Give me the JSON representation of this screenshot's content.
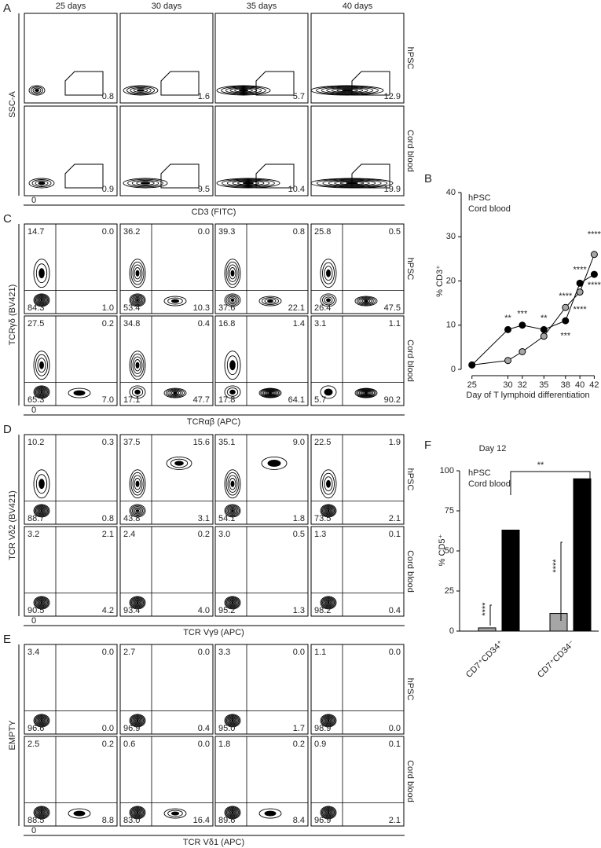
{
  "days": [
    "25 days",
    "30 days",
    "35 days",
    "40 days"
  ],
  "conditions": [
    "hPSC",
    "Cord blood"
  ],
  "panel_a": {
    "label": "A",
    "y_label": "SSC-A",
    "x_label": "CD3 (FITC)",
    "axis_zero": "0",
    "gates": [
      [
        "0.8",
        "1.6",
        "5.7",
        "12.9"
      ],
      [
        "0.9",
        "9.5",
        "10.4",
        "19.9"
      ]
    ]
  },
  "panel_c": {
    "label": "C",
    "y_label": "TCRγδ (BV421)",
    "x_label": "TCRαβ (APC)",
    "axis_zero": "0",
    "quadrants": [
      [
        [
          "14.7",
          "0.0",
          "84.3",
          "1.0"
        ],
        [
          "36.2",
          "0.0",
          "53.4",
          "10.3"
        ],
        [
          "39.3",
          "0.8",
          "37.6",
          "22.1"
        ],
        [
          "25.8",
          "0.5",
          "26.4",
          "47.5"
        ]
      ],
      [
        [
          "27.5",
          "0.2",
          "65.3",
          "7.0"
        ],
        [
          "34.8",
          "0.4",
          "17.1",
          "47.7"
        ],
        [
          "16.8",
          "1.4",
          "17.8",
          "64.1"
        ],
        [
          "3.1",
          "1.1",
          "5.7",
          "90.2"
        ]
      ]
    ]
  },
  "panel_d": {
    "label": "D",
    "y_label": "TCR Vδ2 (BV421)",
    "x_label": "TCR Vγ9 (APC)",
    "axis_zero": "0",
    "quadrants": [
      [
        [
          "10.2",
          "0.3",
          "88.7",
          "0.8"
        ],
        [
          "37.5",
          "15.6",
          "43.8",
          "3.1"
        ],
        [
          "35.1",
          "9.0",
          "54.1",
          "1.8"
        ],
        [
          "22.5",
          "1.9",
          "73.5",
          "2.1"
        ]
      ],
      [
        [
          "3.2",
          "2.1",
          "90.5",
          "4.2"
        ],
        [
          "2.4",
          "0.2",
          "93.4",
          "4.0"
        ],
        [
          "3.0",
          "0.5",
          "95.2",
          "1.3"
        ],
        [
          "1.3",
          "0.1",
          "98.2",
          "0.4"
        ]
      ]
    ]
  },
  "panel_e": {
    "label": "E",
    "y_label": "EMPTY",
    "x_label": "TCR Vδ1 (APC)",
    "axis_zero": "0",
    "quadrants": [
      [
        [
          "3.4",
          "0.0",
          "96.6",
          "0.0"
        ],
        [
          "2.7",
          "0.0",
          "96.9",
          "0.4"
        ],
        [
          "3.3",
          "0.0",
          "95.0",
          "1.7"
        ],
        [
          "1.1",
          "0.0",
          "98.9",
          "0.0"
        ]
      ],
      [
        [
          "2.5",
          "0.2",
          "88.5",
          "8.8"
        ],
        [
          "0.6",
          "0.0",
          "83.0",
          "16.4"
        ],
        [
          "1.8",
          "0.2",
          "89.6",
          "8.4"
        ],
        [
          "0.9",
          "0.1",
          "96.9",
          "2.1"
        ]
      ]
    ]
  },
  "chart_data": [
    {
      "type": "line",
      "label": "B",
      "y_label": "% CD3⁺",
      "x_label": "Day of T lymphoid differentiation",
      "x": [
        25,
        30,
        32,
        35,
        38,
        40,
        42
      ],
      "xlim": [
        23.5,
        42.5
      ],
      "xticks": [
        25,
        30,
        32,
        35,
        38,
        40,
        42
      ],
      "ylim": [
        0,
        40
      ],
      "yticks": [
        0,
        10,
        20,
        30,
        40
      ],
      "series": [
        {
          "name": "hPSC",
          "color": "#a6a6a6",
          "values": [
            1,
            2,
            4,
            7.5,
            14,
            17.5,
            26
          ]
        },
        {
          "name": "Cord blood",
          "color": "#000000",
          "values": [
            1,
            9,
            10,
            9,
            11,
            19.5,
            21.5
          ]
        }
      ],
      "annotations": [
        {
          "text": "**",
          "x": 30,
          "y": 11.5,
          "color": "#000000"
        },
        {
          "text": "***",
          "x": 32,
          "y": 12.5,
          "color": "#000000"
        },
        {
          "text": "**",
          "x": 35,
          "y": 11.5,
          "color": "#000000"
        },
        {
          "text": "***",
          "x": 38,
          "y": 7.5,
          "color": "#000000"
        },
        {
          "text": "****",
          "x": 40,
          "y": 22.5,
          "color": "#000000"
        },
        {
          "text": "****",
          "x": 42,
          "y": 19,
          "color": "#000000"
        },
        {
          "text": "****",
          "x": 42,
          "y": 30.5,
          "color": "#a6a6a6"
        },
        {
          "text": "****",
          "x": 38,
          "y": 16.5,
          "color": "#a6a6a6"
        },
        {
          "text": "****",
          "x": 40,
          "y": 13.5,
          "color": "#a6a6a6"
        }
      ]
    },
    {
      "type": "bar",
      "label": "F",
      "title": "Day 12",
      "y_label": "% CD5⁺",
      "categories": [
        "CD7⁺CD34⁺",
        "CD7⁺CD34⁻"
      ],
      "ylim": [
        0,
        100
      ],
      "yticks": [
        0,
        25,
        50,
        75,
        100
      ],
      "series": [
        {
          "name": "hPSC",
          "color": "#a6a6a6",
          "values": [
            2,
            11
          ]
        },
        {
          "name": "Cord blood",
          "color": "#000000",
          "values": [
            63,
            95
          ]
        }
      ],
      "annotations": [
        "****",
        "****",
        "**"
      ]
    }
  ]
}
